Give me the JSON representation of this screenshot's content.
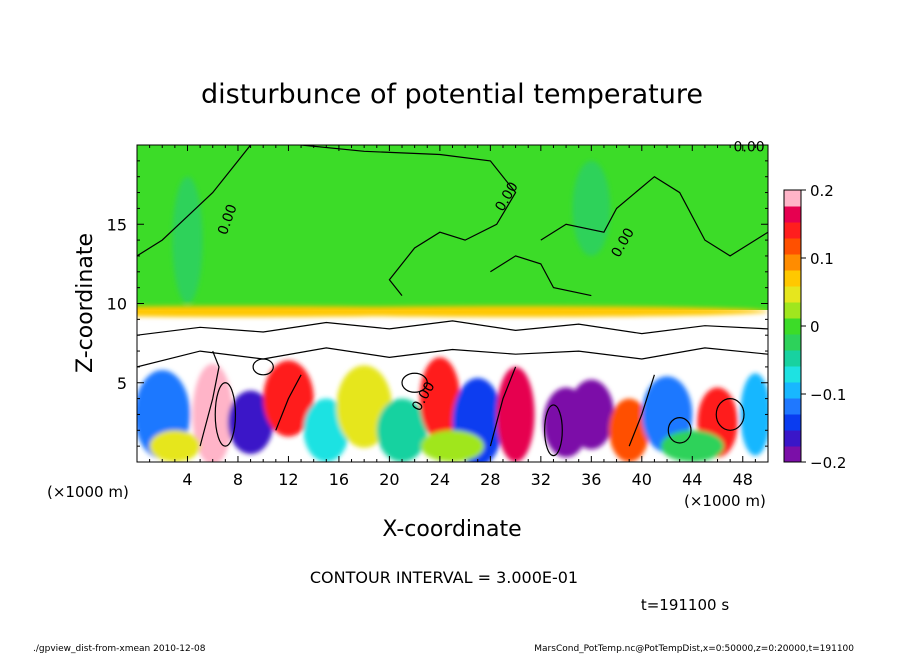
{
  "chart_data": {
    "type": "heatmap",
    "title": "disturbunce of potential temperature",
    "xlabel": "X-coordinate",
    "ylabel": "Z-coordinate",
    "x_unit_left": "(×1000 m)",
    "x_unit_right": "(×1000 m)",
    "xlim": [
      0,
      50
    ],
    "ylim": [
      0,
      20
    ],
    "x_ticks": [
      4,
      8,
      12,
      16,
      20,
      24,
      28,
      32,
      36,
      40,
      44,
      48
    ],
    "y_ticks": [
      5,
      10,
      15
    ],
    "colorbar": {
      "range": [
        -0.2,
        0.2
      ],
      "tick_labels": [
        "0.2",
        "0.1",
        "0",
        "−0.1",
        "−0.2"
      ],
      "tick_values": [
        0.2,
        0.1,
        0,
        -0.1,
        -0.2
      ],
      "colors": [
        "#7b0fa8",
        "#3a16c8",
        "#0a3cf0",
        "#1f78ff",
        "#18b7ff",
        "#1ee2e2",
        "#18d2a0",
        "#2dd25a",
        "#3cdc28",
        "#a0e61e",
        "#e6e61e",
        "#ffc800",
        "#ff8c00",
        "#ff5000",
        "#ff1e1e",
        "#e60050",
        "#ffb4c8"
      ]
    },
    "contour_labels": [
      "0.00",
      "0.00",
      "0.00",
      "0.00",
      "0.00"
    ],
    "contour_interval": "CONTOUR INTERVAL = 3.000E-01",
    "time_label": "t=191100 s"
  },
  "footer": {
    "left": "./gpview_dist-from-xmean  2010-12-08",
    "right": "MarsCond_PotTemp.nc@PotTempDist,x=0:50000,z=0:20000,t=191100"
  }
}
